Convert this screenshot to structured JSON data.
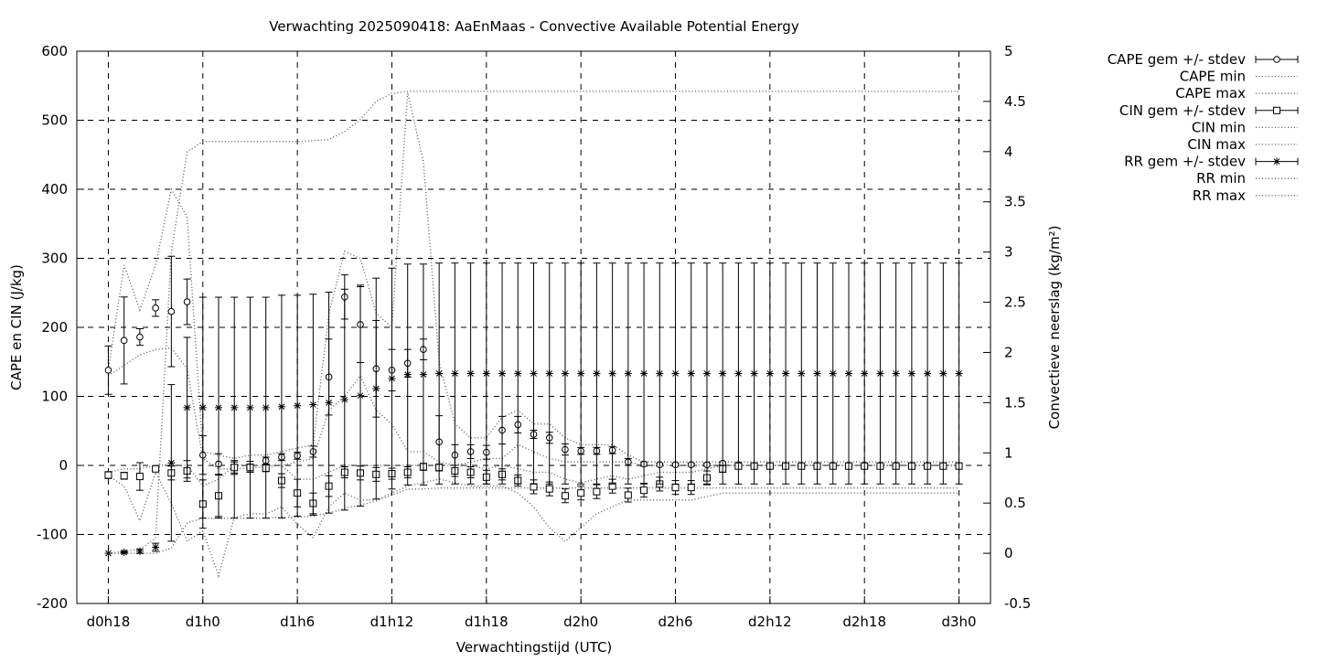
{
  "chart_data": {
    "type": "line",
    "title": "Verwachting 2025090418: AaEnMaas - Convective Available Potential Energy",
    "xlabel": "Verwachtingstijd (UTC)",
    "ylabel": "CAPE en CIN (J/kg)",
    "y2label": "Convectieve neerslag (kg/m²)",
    "ylim": [
      -200,
      600
    ],
    "y2lim": [
      -0.5,
      5
    ],
    "xlim": [
      -2,
      56
    ],
    "grid": true,
    "legend_position": "top-right, outside",
    "x_ticks": [
      {
        "h": 0,
        "label": "d0h18"
      },
      {
        "h": 6,
        "label": "d1h0"
      },
      {
        "h": 12,
        "label": "d1h6"
      },
      {
        "h": 18,
        "label": "d1h12"
      },
      {
        "h": 24,
        "label": "d1h18"
      },
      {
        "h": 30,
        "label": "d2h0"
      },
      {
        "h": 36,
        "label": "d2h6"
      },
      {
        "h": 42,
        "label": "d2h12"
      },
      {
        "h": 48,
        "label": "d2h18"
      },
      {
        "h": 54,
        "label": "d3h0"
      }
    ],
    "y_ticks": [
      "600",
      "500",
      "400",
      "300",
      "200",
      "100",
      "0",
      "-100",
      "-200"
    ],
    "y_tick_values": [
      600,
      500,
      400,
      300,
      200,
      100,
      0,
      -100,
      -200
    ],
    "y2_ticks": [
      "5",
      "4.5",
      "4",
      "3.5",
      "3",
      "2.5",
      "2",
      "1.5",
      "1",
      "0.5",
      "0",
      "-0.5"
    ],
    "y2_tick_values": [
      5,
      4.5,
      4,
      3.5,
      3,
      2.5,
      2,
      1.5,
      1,
      0.5,
      0,
      -0.5
    ],
    "x": [
      0,
      1,
      2,
      3,
      4,
      5,
      6,
      7,
      8,
      9,
      10,
      11,
      12,
      13,
      14,
      15,
      16,
      17,
      18,
      19,
      20,
      21,
      22,
      23,
      24,
      25,
      26,
      27,
      28,
      29,
      30,
      31,
      32,
      33,
      34,
      35,
      36,
      37,
      38,
      39,
      40,
      41,
      42,
      43,
      44,
      45,
      46,
      47,
      48,
      49,
      50,
      51,
      52,
      53,
      54
    ],
    "series": [
      {
        "name": "CAPE gem +/- stdev",
        "axis": "y1",
        "marker": "circle",
        "mean": [
          138,
          181,
          186,
          228,
          223,
          237,
          15,
          2,
          -3,
          -2,
          7,
          12,
          14,
          20,
          128,
          244,
          204,
          140,
          138,
          148,
          168,
          34,
          15,
          20,
          19,
          51,
          59,
          45,
          40,
          23,
          21,
          21,
          22,
          5,
          2,
          1,
          1,
          1,
          1,
          3,
          1,
          0,
          0,
          0,
          0,
          0,
          0,
          0,
          0,
          0,
          0,
          0,
          0,
          0,
          0
        ],
        "stdev": [
          35,
          63,
          12,
          12,
          80,
          33,
          28,
          15,
          10,
          8,
          5,
          5,
          5,
          8,
          55,
          32,
          55,
          70,
          30,
          20,
          15,
          38,
          15,
          10,
          10,
          20,
          12,
          6,
          8,
          8,
          5,
          5,
          5,
          5,
          3,
          2,
          2,
          2,
          2,
          2,
          2,
          0,
          0,
          0,
          0,
          0,
          0,
          0,
          0,
          0,
          0,
          0,
          0,
          0,
          0
        ]
      },
      {
        "name": "CAPE min",
        "axis": "y1",
        "values": [
          130,
          145,
          160,
          168,
          170,
          140,
          10,
          -5,
          -5,
          -4,
          -2,
          0,
          5,
          10,
          80,
          100,
          130,
          80,
          60,
          20,
          20,
          5,
          0,
          5,
          10,
          10,
          30,
          20,
          10,
          5,
          5,
          5,
          5,
          5,
          0,
          0,
          0,
          0,
          0,
          0,
          0,
          0,
          0,
          0,
          0,
          0,
          0,
          0,
          0,
          0,
          0,
          0,
          0,
          0,
          0
        ]
      },
      {
        "name": "CAPE max",
        "axis": "y1",
        "values": [
          138,
          290,
          225,
          290,
          400,
          360,
          20,
          15,
          10,
          15,
          15,
          20,
          25,
          30,
          220,
          310,
          300,
          220,
          200,
          540,
          440,
          150,
          60,
          40,
          40,
          70,
          80,
          60,
          60,
          40,
          30,
          30,
          30,
          15,
          5,
          5,
          5,
          5,
          5,
          5,
          5,
          5,
          5,
          5,
          5,
          5,
          5,
          5,
          5,
          5,
          5,
          5,
          5,
          5,
          5
        ]
      },
      {
        "name": "CIN gem +/- stdev",
        "axis": "y1",
        "marker": "square",
        "mean": [
          -14,
          -15,
          -16,
          -5,
          -11,
          -8,
          -56,
          -44,
          -3,
          -3,
          -4,
          -22,
          -40,
          -55,
          -30,
          -10,
          -11,
          -13,
          -12,
          -10,
          -2,
          -3,
          -8,
          -10,
          -17,
          -13,
          -22,
          -31,
          -34,
          -44,
          -40,
          -38,
          -30,
          -43,
          -36,
          -27,
          -32,
          -32,
          -18,
          -5,
          -1,
          -1,
          -1,
          -1,
          -1,
          -1,
          -1,
          -1,
          -1,
          -1,
          -1,
          -1,
          -1,
          -1,
          -1
        ],
        "stdev": [
          5,
          5,
          20,
          4,
          10,
          15,
          35,
          30,
          8,
          5,
          5,
          10,
          20,
          15,
          15,
          8,
          10,
          10,
          8,
          8,
          5,
          5,
          8,
          8,
          10,
          8,
          8,
          10,
          10,
          10,
          10,
          10,
          10,
          10,
          10,
          10,
          10,
          10,
          10,
          5,
          2,
          2,
          2,
          2,
          2,
          2,
          2,
          2,
          2,
          2,
          2,
          2,
          2,
          2,
          2
        ]
      },
      {
        "name": "CIN min",
        "axis": "y1",
        "values": [
          -15,
          -30,
          -80,
          -10,
          -55,
          -110,
          -95,
          -160,
          -75,
          -70,
          -70,
          -60,
          -85,
          -105,
          -60,
          -40,
          -50,
          -50,
          -40,
          -30,
          -25,
          -20,
          -25,
          -30,
          -30,
          -30,
          -40,
          -60,
          -90,
          -110,
          -90,
          -70,
          -60,
          -50,
          -50,
          -50,
          -50,
          -50,
          -45,
          -40,
          -40,
          -40,
          -40,
          -40,
          -40,
          -40,
          -40,
          -40,
          -40,
          -40,
          -40,
          -40,
          -40,
          -40,
          -40
        ]
      },
      {
        "name": "CIN max",
        "axis": "y1",
        "values": [
          -10,
          -5,
          -5,
          0,
          0,
          0,
          -30,
          -20,
          0,
          0,
          0,
          0,
          -20,
          -20,
          -10,
          0,
          0,
          0,
          0,
          0,
          0,
          0,
          0,
          0,
          -5,
          0,
          -5,
          -10,
          -10,
          -20,
          -25,
          -20,
          -15,
          -20,
          -15,
          -10,
          -10,
          -10,
          -5,
          0,
          0,
          0,
          0,
          0,
          0,
          0,
          0,
          0,
          0,
          0,
          0,
          0,
          0,
          0,
          0
        ]
      },
      {
        "name": "RR gem +/- stdev",
        "axis": "y2",
        "marker": "star",
        "mean": [
          0.0,
          0.01,
          0.02,
          0.06,
          0.9,
          1.45,
          1.45,
          1.45,
          1.45,
          1.45,
          1.45,
          1.46,
          1.47,
          1.48,
          1.5,
          1.53,
          1.57,
          1.64,
          1.74,
          1.78,
          1.78,
          1.79,
          1.79,
          1.79,
          1.79,
          1.79,
          1.79,
          1.79,
          1.79,
          1.79,
          1.79,
          1.79,
          1.79,
          1.79,
          1.79,
          1.79,
          1.79,
          1.79,
          1.79,
          1.79,
          1.79,
          1.79,
          1.79,
          1.79,
          1.79,
          1.79,
          1.79,
          1.79,
          1.79,
          1.79,
          1.79,
          1.79,
          1.79,
          1.79,
          1.79
        ],
        "stdev": [
          0.0,
          0.01,
          0.02,
          0.04,
          0.78,
          0.7,
          1.1,
          1.1,
          1.1,
          1.1,
          1.1,
          1.11,
          1.1,
          1.1,
          1.1,
          1.1,
          1.1,
          1.1,
          1.1,
          1.1,
          1.1,
          1.1,
          1.1,
          1.1,
          1.1,
          1.1,
          1.1,
          1.1,
          1.1,
          1.1,
          1.1,
          1.1,
          1.1,
          1.1,
          1.1,
          1.1,
          1.1,
          1.1,
          1.1,
          1.1,
          1.1,
          1.1,
          1.1,
          1.1,
          1.1,
          1.1,
          1.1,
          1.1,
          1.1,
          1.1,
          1.1,
          1.1,
          1.1,
          1.1,
          1.1
        ]
      },
      {
        "name": "RR min",
        "axis": "y2",
        "values": [
          0,
          0,
          0,
          0,
          0.05,
          0.3,
          0.35,
          0.35,
          0.35,
          0.35,
          0.35,
          0.36,
          0.36,
          0.37,
          0.4,
          0.45,
          0.48,
          0.52,
          0.58,
          0.64,
          0.64,
          0.65,
          0.65,
          0.65,
          0.65,
          0.65,
          0.65,
          0.65,
          0.65,
          0.65,
          0.65,
          0.65,
          0.65,
          0.65,
          0.65,
          0.65,
          0.65,
          0.65,
          0.65,
          0.65,
          0.65,
          0.65,
          0.65,
          0.65,
          0.65,
          0.65,
          0.65,
          0.65,
          0.65,
          0.65,
          0.65,
          0.65,
          0.65,
          0.65,
          0.65
        ]
      },
      {
        "name": "RR max",
        "axis": "y2",
        "values": [
          0,
          0.02,
          0.04,
          0.15,
          3.0,
          4.0,
          4.1,
          4.1,
          4.1,
          4.1,
          4.1,
          4.1,
          4.1,
          4.11,
          4.12,
          4.2,
          4.32,
          4.5,
          4.58,
          4.6,
          4.6,
          4.6,
          4.6,
          4.6,
          4.6,
          4.6,
          4.6,
          4.6,
          4.6,
          4.6,
          4.6,
          4.6,
          4.6,
          4.6,
          4.6,
          4.6,
          4.6,
          4.6,
          4.6,
          4.6,
          4.6,
          4.6,
          4.6,
          4.6,
          4.6,
          4.6,
          4.6,
          4.6,
          4.6,
          4.6,
          4.6,
          4.6,
          4.6,
          4.6,
          4.6
        ]
      }
    ]
  }
}
